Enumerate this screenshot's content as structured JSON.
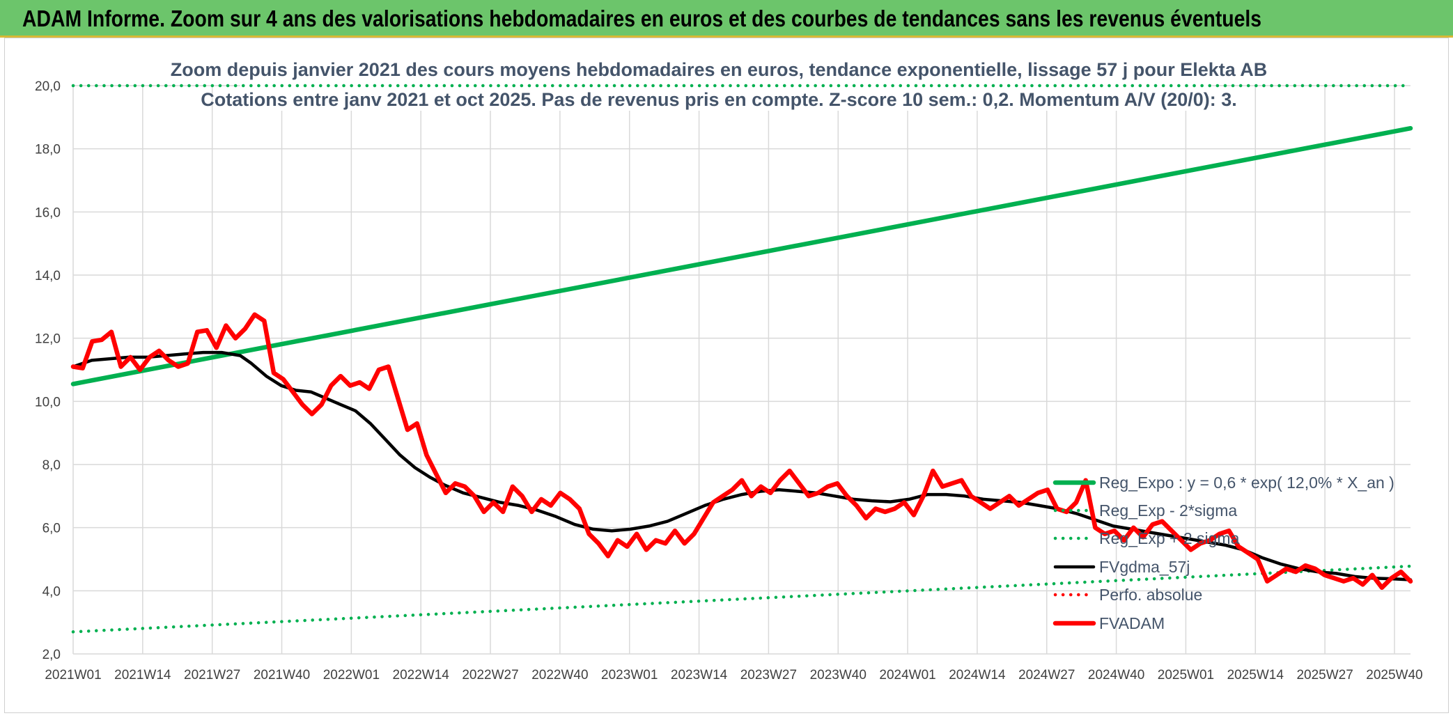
{
  "header": {
    "title": "ADAM Informe. Zoom sur 4 ans des valorisations hebdomadaires en euros et des courbes de tendances sans les revenus éventuels"
  },
  "colors": {
    "banner": "#6cc56b",
    "trend": "#00b050",
    "price": "#ff0000",
    "smooth": "#000000",
    "perf": "#ff0000",
    "grid": "#d9d9d9",
    "text": "#44546a"
  },
  "chart_data": {
    "type": "line",
    "title": "Zoom depuis janvier 2021 des cours moyens hebdomadaires en euros, tendance exponentielle, lissage 57 j pour Elekta AB",
    "subtitle": "Cotations entre janv 2021 et oct 2025. Pas de revenus pris en compte. Z-score 10 sem.: 0,2. Momentum A/V (20/0): 3.",
    "xlabel": "",
    "ylabel": "",
    "ylim": [
      2,
      20
    ],
    "yticks": [
      "2,0",
      "4,0",
      "6,0",
      "8,0",
      "10,0",
      "12,0",
      "14,0",
      "16,0",
      "18,0",
      "20,0"
    ],
    "grid": true,
    "legend_position": "right",
    "x_tick_labels": [
      "2021W01",
      "2021W14",
      "2021W27",
      "2021W40",
      "2022W01",
      "2022W14",
      "2022W27",
      "2022W40",
      "2023W01",
      "2023W14",
      "2023W27",
      "2023W40",
      "2024W01",
      "2024W14",
      "2024W27",
      "2024W40",
      "2025W01",
      "2025W14",
      "2025W27",
      "2025W40"
    ],
    "week_count": 250,
    "series": [
      {
        "name": "Reg_Expo : y = 0,6 * exp( 12,0% *  X_an )",
        "style": "solid-thick",
        "color": "#00b050",
        "points": [
          [
            0,
            10.55
          ],
          [
            250,
            18.65
          ]
        ]
      },
      {
        "name": "Reg_Exp - 2*sigma",
        "style": "dotted",
        "color": "#00b050",
        "points": [
          [
            0,
            2.7
          ],
          [
            250,
            4.78
          ]
        ]
      },
      {
        "name": "Reg_Exp + 2 sigma",
        "style": "dotted",
        "color": "#00b050",
        "points": [
          [
            0,
            20.0
          ],
          [
            250,
            20.0
          ]
        ]
      },
      {
        "name": "FVgdma_57j",
        "style": "solid",
        "color": "#000000",
        "points": [
          [
            0,
            11.1
          ],
          [
            5,
            11.3
          ],
          [
            10,
            11.35
          ],
          [
            15,
            11.4
          ],
          [
            20,
            11.4
          ],
          [
            25,
            11.45
          ],
          [
            30,
            11.5
          ],
          [
            35,
            11.55
          ],
          [
            40,
            11.55
          ],
          [
            45,
            11.45
          ],
          [
            48,
            11.2
          ],
          [
            52,
            10.8
          ],
          [
            56,
            10.5
          ],
          [
            60,
            10.35
          ],
          [
            64,
            10.3
          ],
          [
            68,
            10.1
          ],
          [
            72,
            9.9
          ],
          [
            76,
            9.7
          ],
          [
            80,
            9.3
          ],
          [
            84,
            8.8
          ],
          [
            88,
            8.3
          ],
          [
            92,
            7.9
          ],
          [
            96,
            7.6
          ],
          [
            100,
            7.35
          ],
          [
            105,
            7.1
          ],
          [
            110,
            6.95
          ],
          [
            115,
            6.8
          ],
          [
            120,
            6.7
          ],
          [
            125,
            6.55
          ],
          [
            130,
            6.35
          ],
          [
            135,
            6.1
          ],
          [
            140,
            5.95
          ],
          [
            145,
            5.9
          ],
          [
            150,
            5.95
          ],
          [
            155,
            6.05
          ],
          [
            160,
            6.2
          ],
          [
            165,
            6.45
          ],
          [
            170,
            6.7
          ],
          [
            175,
            6.9
          ],
          [
            180,
            7.05
          ],
          [
            185,
            7.15
          ],
          [
            190,
            7.2
          ],
          [
            195,
            7.15
          ],
          [
            200,
            7.1
          ],
          [
            205,
            7.0
          ],
          [
            210,
            6.9
          ],
          [
            215,
            6.85
          ],
          [
            220,
            6.82
          ],
          [
            225,
            6.9
          ],
          [
            230,
            7.05
          ],
          [
            235,
            7.05
          ],
          [
            240,
            7.0
          ],
          [
            245,
            6.9
          ],
          [
            250,
            6.85
          ],
          [
            255,
            6.8
          ],
          [
            260,
            6.7
          ],
          [
            265,
            6.6
          ],
          [
            270,
            6.45
          ],
          [
            275,
            6.25
          ],
          [
            280,
            6.05
          ],
          [
            285,
            5.95
          ],
          [
            290,
            5.85
          ],
          [
            295,
            5.75
          ],
          [
            300,
            5.65
          ],
          [
            305,
            5.55
          ],
          [
            310,
            5.45
          ],
          [
            315,
            5.3
          ],
          [
            320,
            5.05
          ],
          [
            325,
            4.85
          ],
          [
            330,
            4.7
          ],
          [
            335,
            4.6
          ],
          [
            340,
            4.55
          ],
          [
            345,
            4.45
          ],
          [
            350,
            4.4
          ],
          [
            355,
            4.38
          ],
          [
            360,
            4.35
          ]
        ]
      },
      {
        "name": "Perfo. absolue",
        "style": "dotted",
        "color": "#ff0000",
        "points": []
      },
      {
        "name": "FVADAM",
        "style": "solid-thick",
        "color": "#ff0000",
        "points": [
          [
            0,
            11.1
          ],
          [
            2,
            11.05
          ],
          [
            4,
            11.9
          ],
          [
            6,
            11.95
          ],
          [
            8,
            12.2
          ],
          [
            10,
            11.1
          ],
          [
            12,
            11.4
          ],
          [
            14,
            11.0
          ],
          [
            16,
            11.4
          ],
          [
            18,
            11.6
          ],
          [
            20,
            11.3
          ],
          [
            22,
            11.1
          ],
          [
            24,
            11.2
          ],
          [
            26,
            12.2
          ],
          [
            28,
            12.25
          ],
          [
            30,
            11.7
          ],
          [
            32,
            12.4
          ],
          [
            34,
            12.0
          ],
          [
            36,
            12.3
          ],
          [
            38,
            12.75
          ],
          [
            40,
            12.55
          ],
          [
            42,
            10.9
          ],
          [
            44,
            10.7
          ],
          [
            46,
            10.3
          ],
          [
            48,
            9.9
          ],
          [
            50,
            9.6
          ],
          [
            52,
            9.9
          ],
          [
            54,
            10.5
          ],
          [
            56,
            10.8
          ],
          [
            58,
            10.5
          ],
          [
            60,
            10.6
          ],
          [
            62,
            10.4
          ],
          [
            64,
            11.0
          ],
          [
            66,
            11.1
          ],
          [
            68,
            10.1
          ],
          [
            70,
            9.1
          ],
          [
            72,
            9.3
          ],
          [
            74,
            8.3
          ],
          [
            76,
            7.7
          ],
          [
            78,
            7.1
          ],
          [
            80,
            7.4
          ],
          [
            82,
            7.3
          ],
          [
            84,
            7.0
          ],
          [
            86,
            6.5
          ],
          [
            88,
            6.8
          ],
          [
            90,
            6.5
          ],
          [
            92,
            7.3
          ],
          [
            94,
            7.0
          ],
          [
            96,
            6.5
          ],
          [
            98,
            6.9
          ],
          [
            100,
            6.7
          ],
          [
            102,
            7.1
          ],
          [
            104,
            6.9
          ],
          [
            106,
            6.6
          ],
          [
            108,
            5.8
          ],
          [
            110,
            5.5
          ],
          [
            112,
            5.1
          ],
          [
            114,
            5.6
          ],
          [
            116,
            5.4
          ],
          [
            118,
            5.8
          ],
          [
            120,
            5.3
          ],
          [
            122,
            5.6
          ],
          [
            124,
            5.5
          ],
          [
            126,
            5.9
          ],
          [
            128,
            5.5
          ],
          [
            130,
            5.8
          ],
          [
            132,
            6.3
          ],
          [
            134,
            6.8
          ],
          [
            136,
            7.0
          ],
          [
            138,
            7.2
          ],
          [
            140,
            7.5
          ],
          [
            142,
            7.0
          ],
          [
            144,
            7.3
          ],
          [
            146,
            7.1
          ],
          [
            148,
            7.5
          ],
          [
            150,
            7.8
          ],
          [
            152,
            7.4
          ],
          [
            154,
            7.0
          ],
          [
            156,
            7.1
          ],
          [
            158,
            7.3
          ],
          [
            160,
            7.4
          ],
          [
            162,
            7.0
          ],
          [
            164,
            6.7
          ],
          [
            166,
            6.3
          ],
          [
            168,
            6.6
          ],
          [
            170,
            6.5
          ],
          [
            172,
            6.6
          ],
          [
            174,
            6.8
          ],
          [
            176,
            6.4
          ],
          [
            178,
            7.0
          ],
          [
            180,
            7.8
          ],
          [
            182,
            7.3
          ],
          [
            184,
            7.4
          ],
          [
            186,
            7.5
          ],
          [
            188,
            7.0
          ],
          [
            190,
            6.8
          ],
          [
            192,
            6.6
          ],
          [
            194,
            6.8
          ],
          [
            196,
            7.0
          ],
          [
            198,
            6.7
          ],
          [
            200,
            6.9
          ],
          [
            202,
            7.1
          ],
          [
            204,
            7.2
          ],
          [
            206,
            6.6
          ],
          [
            208,
            6.5
          ],
          [
            210,
            6.8
          ],
          [
            212,
            7.5
          ],
          [
            214,
            6.0
          ],
          [
            216,
            5.8
          ],
          [
            218,
            5.9
          ],
          [
            220,
            5.6
          ],
          [
            222,
            6.0
          ],
          [
            224,
            5.7
          ],
          [
            226,
            6.1
          ],
          [
            228,
            6.2
          ],
          [
            230,
            5.9
          ],
          [
            232,
            5.6
          ],
          [
            234,
            5.3
          ],
          [
            236,
            5.5
          ],
          [
            238,
            5.6
          ],
          [
            240,
            5.8
          ],
          [
            242,
            5.9
          ],
          [
            244,
            5.4
          ],
          [
            246,
            5.2
          ],
          [
            248,
            5.0
          ],
          [
            250,
            4.3
          ],
          [
            252,
            4.5
          ],
          [
            254,
            4.7
          ],
          [
            256,
            4.6
          ],
          [
            258,
            4.8
          ],
          [
            260,
            4.7
          ],
          [
            262,
            4.5
          ],
          [
            264,
            4.4
          ],
          [
            266,
            4.3
          ],
          [
            268,
            4.4
          ],
          [
            270,
            4.2
          ],
          [
            272,
            4.5
          ],
          [
            274,
            4.1
          ],
          [
            276,
            4.4
          ],
          [
            278,
            4.6
          ],
          [
            280,
            4.3
          ]
        ]
      }
    ]
  }
}
